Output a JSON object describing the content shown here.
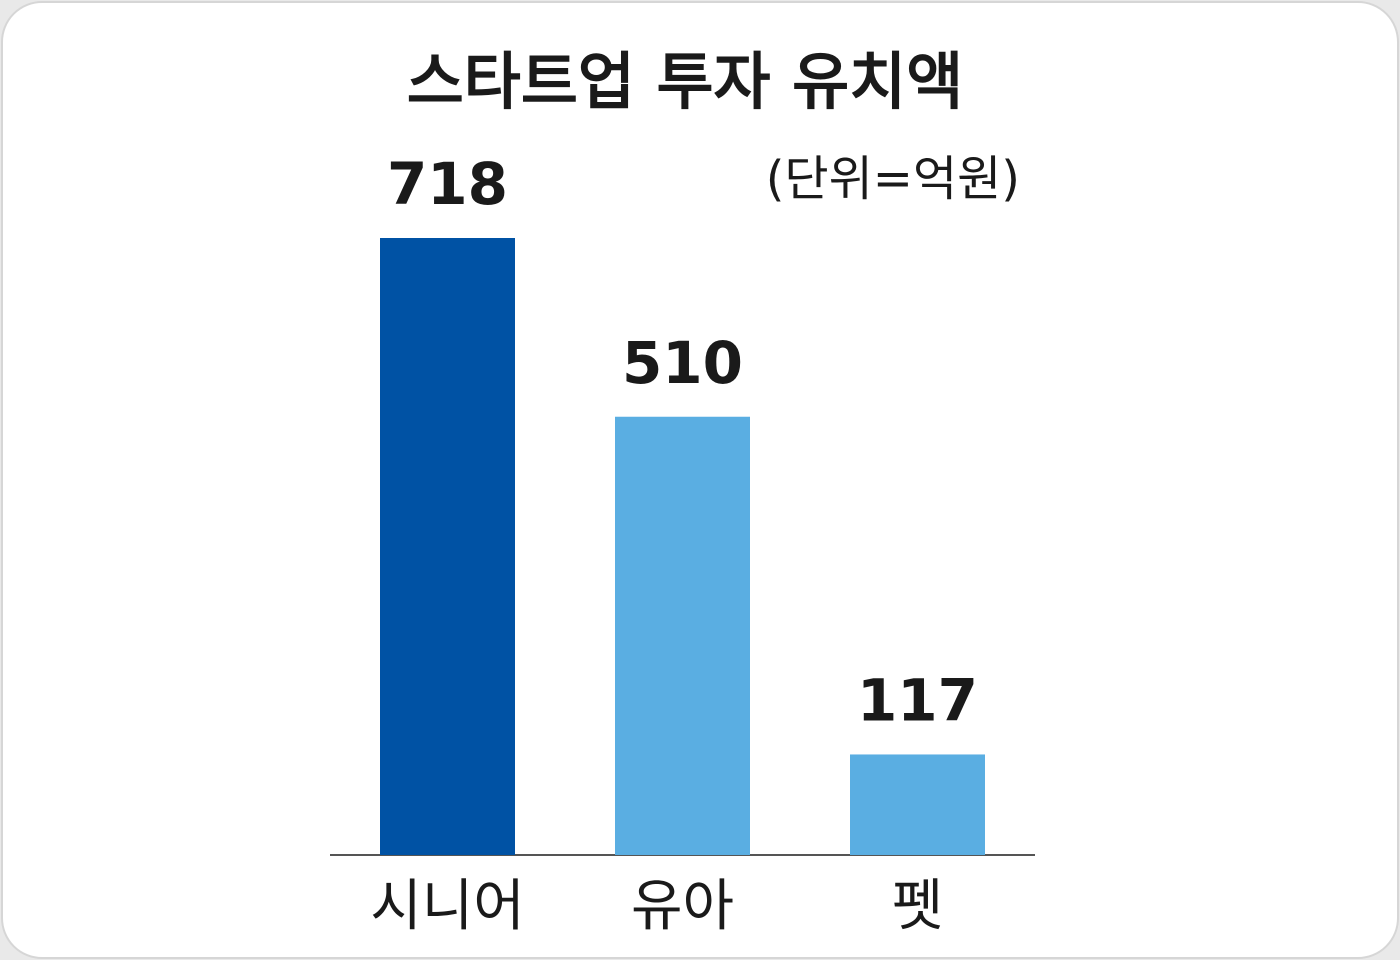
{
  "chart_data": {
    "type": "bar",
    "title": "스타트업 투자 유치액",
    "subtitle": "(단위=억원)",
    "categories": [
      "시니어",
      "유아",
      "펫"
    ],
    "values": [
      718,
      510,
      117
    ],
    "colors": [
      "#0052a4",
      "#5aaee2",
      "#5aaee2"
    ]
  }
}
